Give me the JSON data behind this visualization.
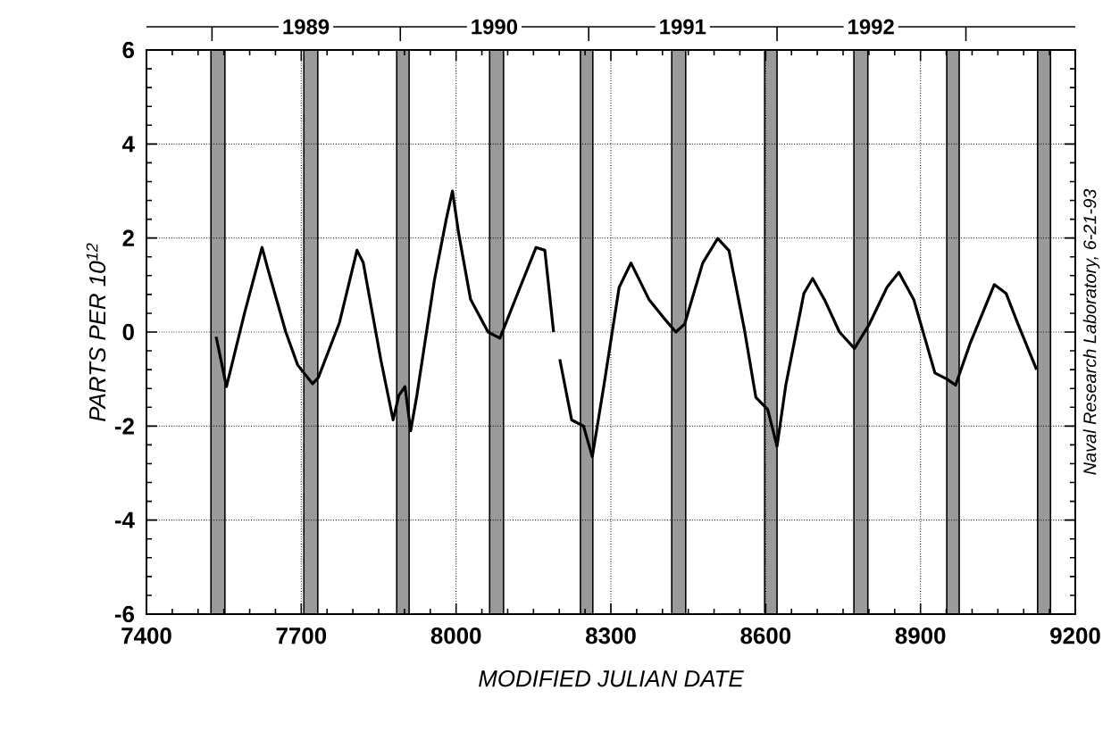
{
  "chart_data": {
    "type": "line",
    "xlabel": "MODIFIED JULIAN DATE",
    "ylabel": "PARTS PER 10$^{12}$",
    "annotations": [
      "Naval Research Laboratory, 6-21-93"
    ],
    "xlim": [
      7400,
      9200
    ],
    "xticks": [
      7400,
      7700,
      8000,
      8300,
      8600,
      8900,
      9200
    ],
    "ylim": [
      -6,
      6
    ],
    "yticks": [
      -6,
      -4,
      -2,
      0,
      2,
      4,
      6
    ],
    "x2lim": [
      "1988-08-27",
      "1993-08-01"
    ],
    "x2ticks": [
      {
        "value": "1989-01-01",
        "label": null
      },
      {
        "value": "1989-07-02",
        "label": "1989"
      },
      {
        "value": "1990-01-01",
        "label": null
      },
      {
        "value": "1990-07-02",
        "label": "1990"
      },
      {
        "value": "1991-01-01",
        "label": null
      },
      {
        "value": "1991-07-02",
        "label": "1991"
      },
      {
        "value": "1992-01-01",
        "label": null
      },
      {
        "value": "1992-07-01",
        "label": "1992"
      },
      {
        "value": "1993-01-01",
        "label": null
      }
    ],
    "grid": true,
    "marker": "none",
    "line_style": "solid",
    "bands": [
      {
        "axis": "x",
        "from": 7525,
        "to": 7552,
        "color": "#9a9a9a"
      },
      {
        "axis": "x",
        "from": 7705,
        "to": 7732,
        "color": "#9a9a9a"
      },
      {
        "axis": "x",
        "from": 7885,
        "to": 7909,
        "color": "#9a9a9a"
      },
      {
        "axis": "x",
        "from": 8065,
        "to": 8092,
        "color": "#9a9a9a"
      },
      {
        "axis": "x",
        "from": 8241,
        "to": 8265,
        "color": "#9a9a9a"
      },
      {
        "axis": "x",
        "from": 8418,
        "to": 8445,
        "color": "#9a9a9a"
      },
      {
        "axis": "x",
        "from": 8598,
        "to": 8622,
        "color": "#9a9a9a"
      },
      {
        "axis": "x",
        "from": 8771,
        "to": 8798,
        "color": "#9a9a9a"
      },
      {
        "axis": "x",
        "from": 8951,
        "to": 8975,
        "color": "#9a9a9a"
      },
      {
        "axis": "x",
        "from": 9127,
        "to": 9152,
        "color": "#9a9a9a"
      }
    ],
    "series": [
      {
        "color": "#000000",
        "x": [
          7535,
          7555,
          7590,
          7624,
          7635,
          7670,
          7693,
          7722,
          7733,
          7774,
          7808,
          7820,
          7854,
          7878,
          7889,
          7901,
          7912,
          7924,
          7958,
          7981,
          7993,
          8005,
          8028,
          8062,
          8085,
          8120,
          8155,
          8172,
          8189,
          8195,
          8201,
          8224,
          8247,
          8264,
          8287,
          8316,
          8339,
          8374,
          8408,
          8426,
          8443,
          8478,
          8507,
          8529,
          8559,
          8581,
          8604,
          8622,
          8639,
          8674,
          8691,
          8714,
          8743,
          8772,
          8801,
          8835,
          8858,
          8887,
          8928,
          8951,
          8968,
          8997,
          9043,
          9066,
          9089,
          9118,
          9125
        ],
        "values": [
          -0.1,
          -1.16,
          0.4,
          1.8,
          1.35,
          0,
          -0.7,
          -1.1,
          -0.97,
          0.2,
          1.74,
          1.48,
          -0.58,
          -1.87,
          -1.35,
          -1.16,
          -2.1,
          -1.35,
          1.1,
          2.4,
          3.0,
          2.1,
          0.7,
          0,
          -0.13,
          0.84,
          1.8,
          1.74,
          0,
          null,
          -0.58,
          -1.87,
          -2.0,
          -2.65,
          -1.1,
          0.95,
          1.47,
          0.69,
          0.23,
          0,
          0.17,
          1.47,
          1.99,
          1.73,
          0.04,
          -1.39,
          -1.65,
          -2.43,
          -1.13,
          0.82,
          1.14,
          0.69,
          0,
          -0.35,
          0.17,
          0.95,
          1.27,
          0.69,
          -0.87,
          -1.0,
          -1.13,
          -0.22,
          1.01,
          0.82,
          0.17,
          -0.61,
          -0.8
        ]
      }
    ]
  }
}
